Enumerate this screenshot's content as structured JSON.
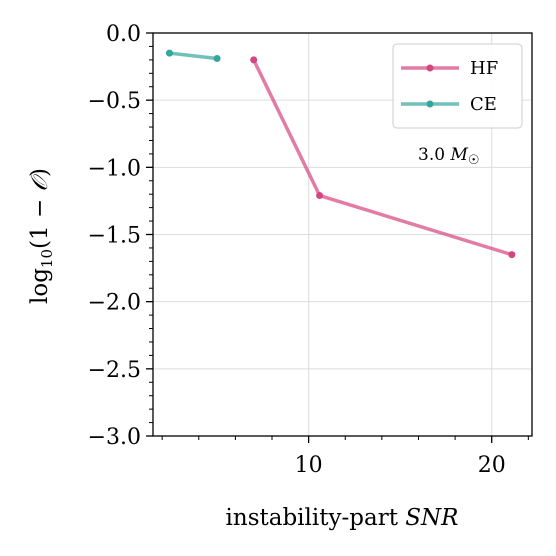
{
  "chart_data": {
    "type": "line",
    "xlabel": "instability-part SNR",
    "ylabel": "log10(1 − 𝒪)",
    "xlim": [
      1.5,
      22.2
    ],
    "ylim": [
      -3.0,
      0.0
    ],
    "xticks": [
      10,
      20
    ],
    "xtick_labels": [
      "10",
      "20"
    ],
    "yticks": [
      0.0,
      -0.5,
      -1.0,
      -1.5,
      -2.0,
      -2.5,
      -3.0
    ],
    "ytick_labels": [
      "0.0",
      "−0.5",
      "−1.0",
      "−1.5",
      "−2.0",
      "−2.5",
      "−3.0"
    ],
    "grid": true,
    "legend_position": "top-right",
    "annotation": "3.0 M☉",
    "series": [
      {
        "name": "HF",
        "color": "#d6457f",
        "x": [
          7.0,
          10.6,
          21.1
        ],
        "y": [
          -0.2,
          -1.21,
          -1.65
        ]
      },
      {
        "name": "CE",
        "color": "#33a79e",
        "x": [
          2.4,
          5.0
        ],
        "y": [
          -0.15,
          -0.19
        ]
      }
    ]
  }
}
